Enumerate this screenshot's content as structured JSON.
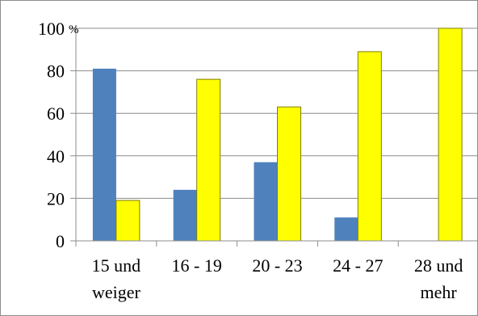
{
  "chart_data": {
    "type": "bar",
    "categories": [
      [
        "15 und",
        "weiger"
      ],
      [
        "16 - 19"
      ],
      [
        "20 - 23"
      ],
      [
        "24 - 27"
      ],
      [
        "28 und",
        "mehr"
      ]
    ],
    "series": [
      {
        "color": "#4f81bd",
        "values": [
          81,
          24,
          37,
          11,
          0
        ]
      },
      {
        "color": "#ffff00",
        "values": [
          19,
          76,
          63,
          89,
          100
        ]
      }
    ],
    "ylim": [
      0,
      100
    ],
    "yticks": [
      0,
      20,
      40,
      60,
      80,
      100
    ],
    "y_unit_label": "%",
    "grid": true,
    "legend": "none",
    "xlabel": "",
    "ylabel": ""
  }
}
